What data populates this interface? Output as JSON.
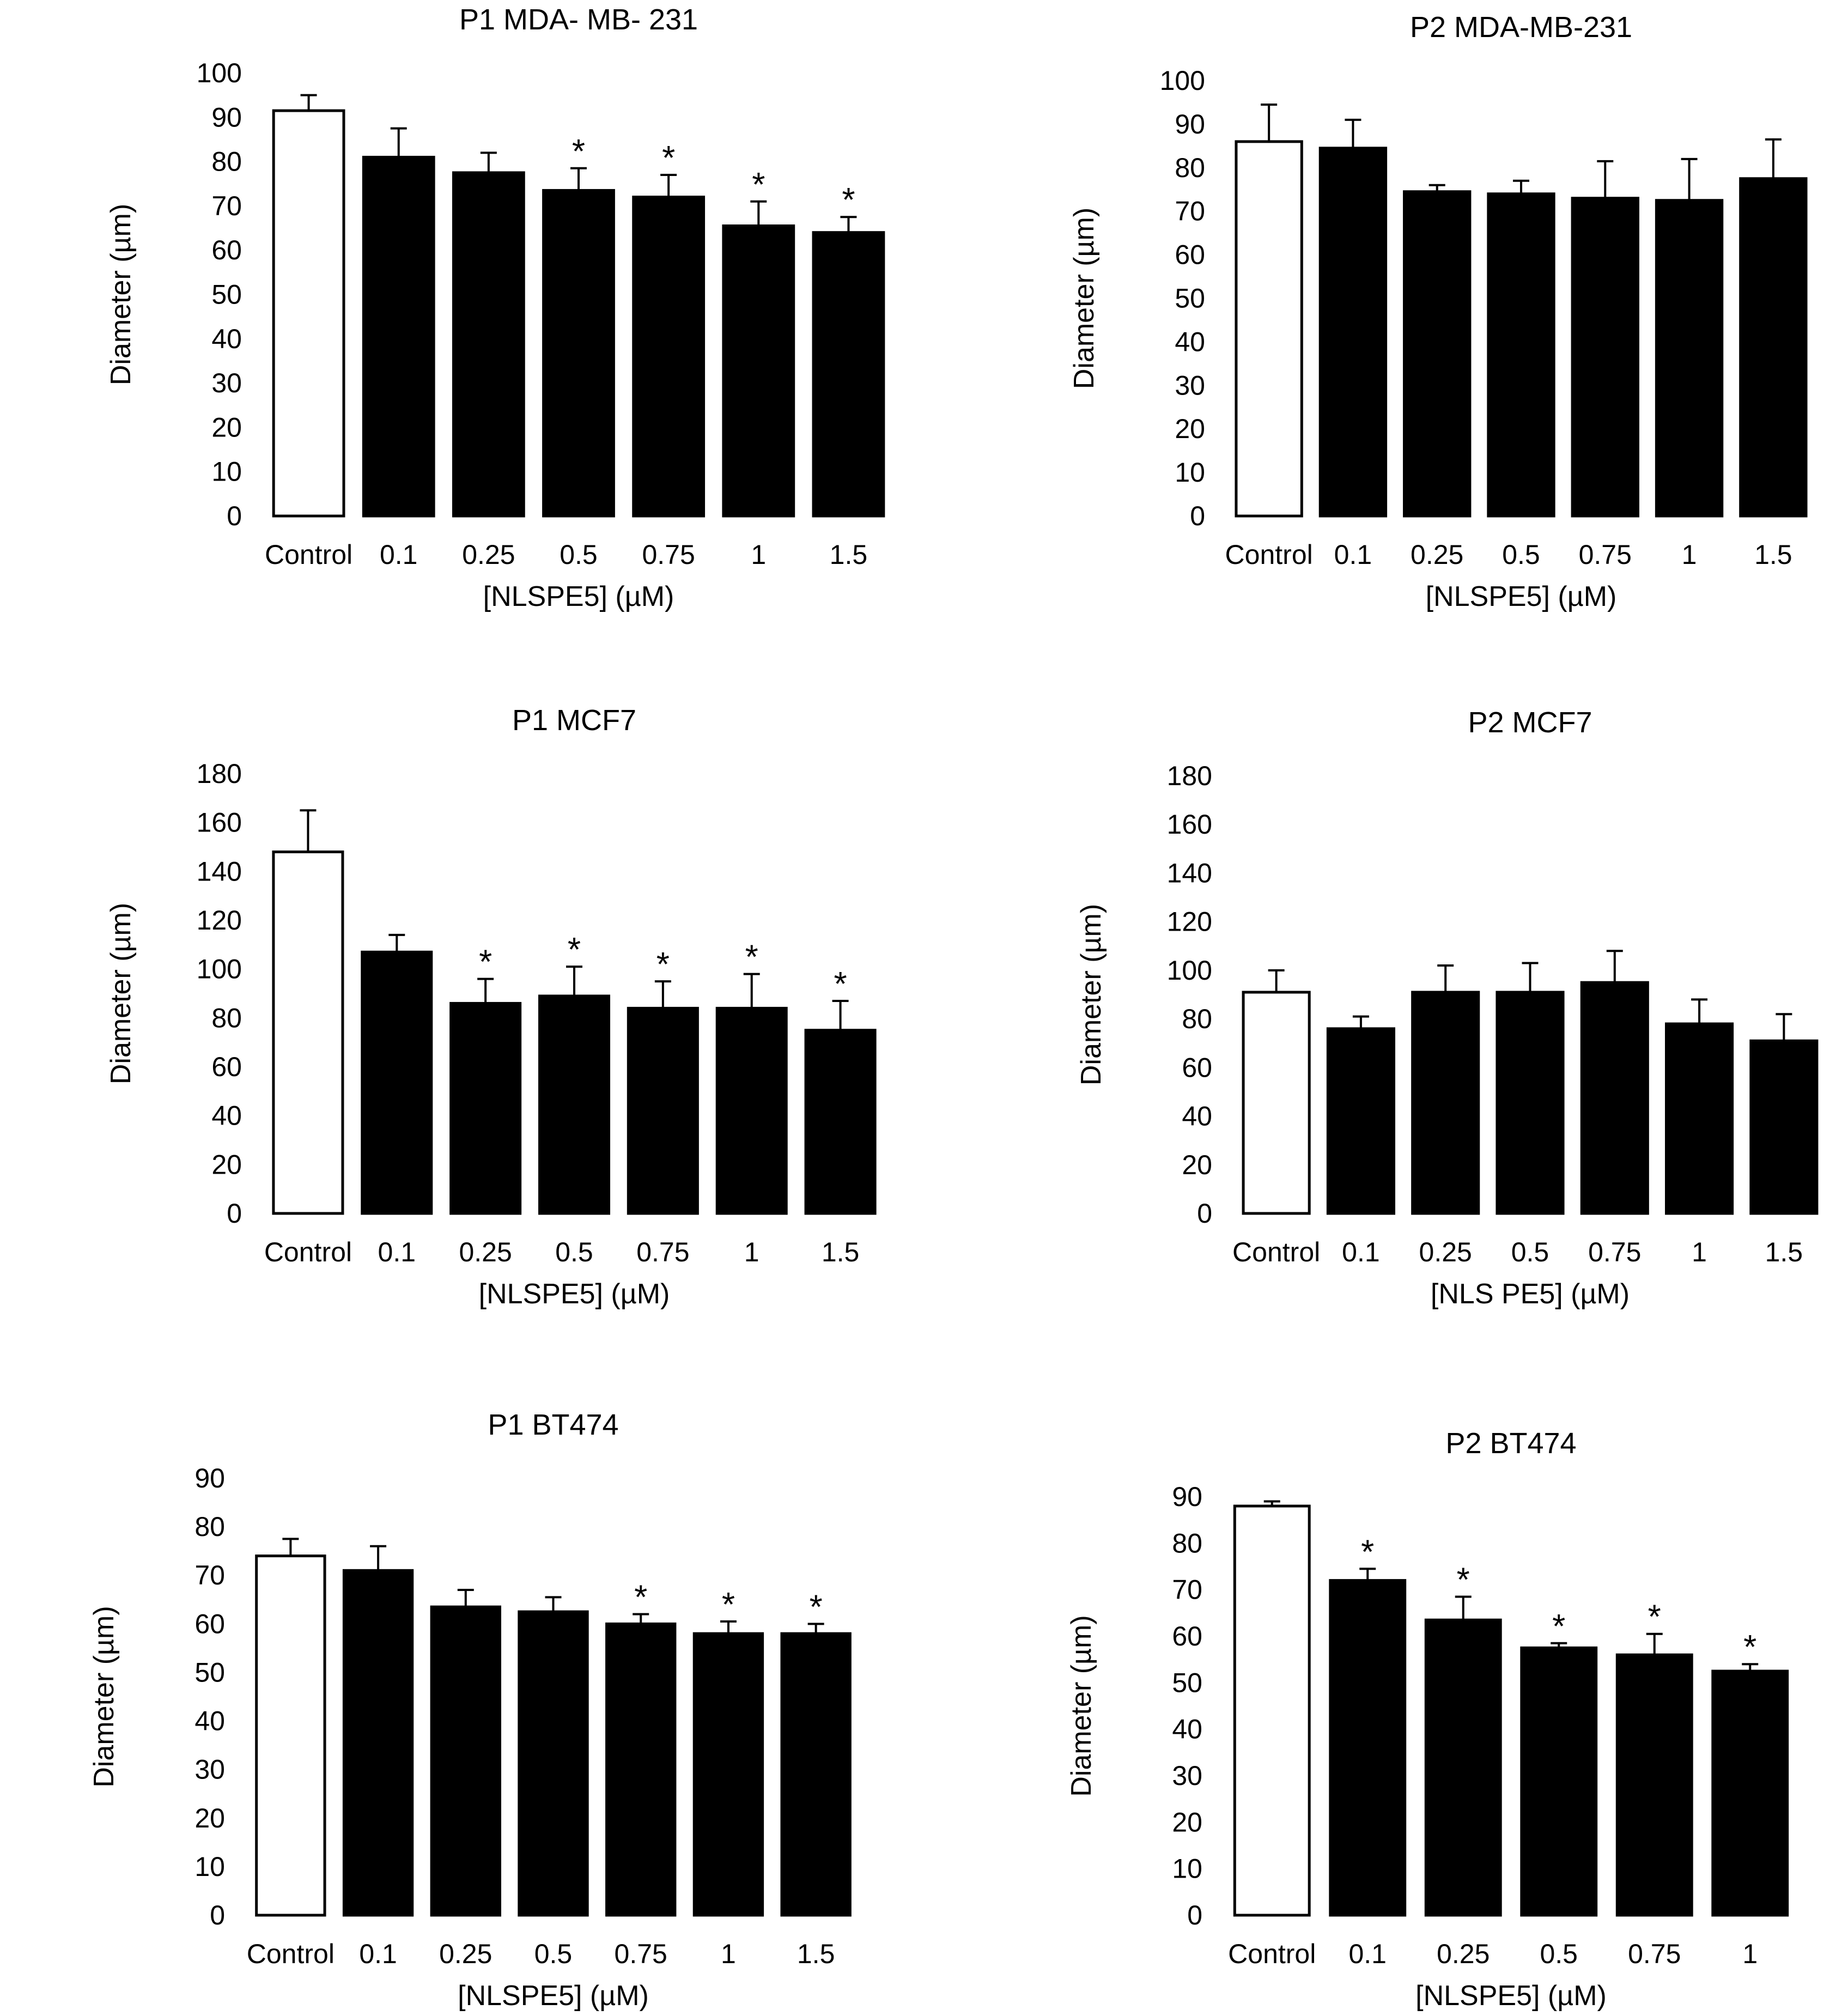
{
  "figure": {
    "colors": {
      "control_fill": "#ffffff",
      "treated_fill": "#000000",
      "stroke": "#000000",
      "text": "#000000"
    },
    "errorbar_style": "upper-only"
  },
  "chart_data": [
    {
      "type": "bar",
      "title": "P1 MDA- MB- 231",
      "xlabel": "[NLSPE5] (µM)",
      "ylabel": "Diameter (µm)",
      "ylim": [
        0,
        100
      ],
      "ytick_step": 10,
      "grid": false,
      "legend": "none",
      "categories": [
        "Control",
        "0.1",
        "0.25",
        "0.5",
        "0.75",
        "1",
        "1.5"
      ],
      "values": [
        91.5,
        81,
        77.5,
        73.5,
        72,
        65.5,
        64
      ],
      "errors": [
        3.5,
        6.5,
        4.5,
        5,
        5,
        5.5,
        3.5
      ],
      "significant": [
        false,
        false,
        false,
        true,
        true,
        true,
        true
      ],
      "significance_marker": "*"
    },
    {
      "type": "bar",
      "title": "P2 MDA-MB-231",
      "xlabel": "[NLSPE5] (µM)",
      "ylabel": "Diameter (µm)",
      "ylim": [
        0,
        100
      ],
      "ytick_step": 10,
      "grid": false,
      "legend": "none",
      "categories": [
        "Control",
        "0.1",
        "0.25",
        "0.5",
        "0.75",
        "1",
        "1.5"
      ],
      "values": [
        86,
        84.5,
        74.5,
        74,
        73,
        72.5,
        77.5
      ],
      "errors": [
        8.5,
        6.5,
        1.5,
        3,
        8.5,
        9.5,
        9
      ],
      "significant": [
        false,
        false,
        false,
        false,
        false,
        false,
        false
      ],
      "significance_marker": "*"
    },
    {
      "type": "bar",
      "title": "P1 MCF7",
      "xlabel": "[NLSPE5] (µM)",
      "ylabel": "Diameter (µm)",
      "ylim": [
        0,
        180
      ],
      "ytick_step": 20,
      "grid": false,
      "legend": "none",
      "categories": [
        "Control",
        "0.1",
        "0.25",
        "0.5",
        "0.75",
        "1",
        "1.5"
      ],
      "values": [
        148,
        107,
        86,
        89,
        84,
        84,
        75
      ],
      "errors": [
        17,
        7,
        10,
        12,
        11,
        14,
        12
      ],
      "significant": [
        false,
        false,
        true,
        true,
        true,
        true,
        true
      ],
      "significance_marker": "*"
    },
    {
      "type": "bar",
      "title": "P2 MCF7",
      "xlabel": "[NLS PE5] (µM)",
      "ylabel": "Diameter (µm)",
      "ylim": [
        0,
        180
      ],
      "ytick_step": 20,
      "grid": false,
      "legend": "none",
      "categories": [
        "Control",
        "0.1",
        "0.25",
        "0.5",
        "0.75",
        "1",
        "1.5"
      ],
      "values": [
        91,
        76,
        91,
        91,
        95,
        78,
        71
      ],
      "errors": [
        9,
        5,
        11,
        12,
        13,
        10,
        11
      ],
      "significant": [
        false,
        false,
        false,
        false,
        false,
        false,
        false
      ],
      "significance_marker": "*"
    },
    {
      "type": "bar",
      "title": "P1 BT474",
      "xlabel": "[NLSPE5] (µM)",
      "ylabel": "Diameter (µm)",
      "ylim": [
        0,
        90
      ],
      "ytick_step": 10,
      "grid": false,
      "legend": "none",
      "categories": [
        "Control",
        "0.1",
        "0.25",
        "0.5",
        "0.75",
        "1",
        "1.5"
      ],
      "values": [
        74,
        71,
        63.5,
        62.5,
        60,
        58,
        58
      ],
      "errors": [
        3.5,
        5,
        3.5,
        3,
        2,
        2.5,
        2
      ],
      "significant": [
        false,
        false,
        false,
        false,
        true,
        true,
        true
      ],
      "significance_marker": "*"
    },
    {
      "type": "bar",
      "title": "P2 BT474",
      "xlabel": "[NLSPE5] (µM)",
      "ylabel": "Diameter (µm)",
      "ylim": [
        0,
        90
      ],
      "ytick_step": 10,
      "grid": false,
      "legend": "none",
      "categories": [
        "Control",
        "0.1",
        "0.25",
        "0.5",
        "0.75",
        "1"
      ],
      "values": [
        88,
        72,
        63.5,
        57.5,
        56,
        52.5
      ],
      "errors": [
        1,
        2.5,
        5,
        1,
        4.5,
        1.5
      ],
      "significant": [
        false,
        true,
        true,
        true,
        true,
        true
      ],
      "significance_marker": "*"
    }
  ]
}
